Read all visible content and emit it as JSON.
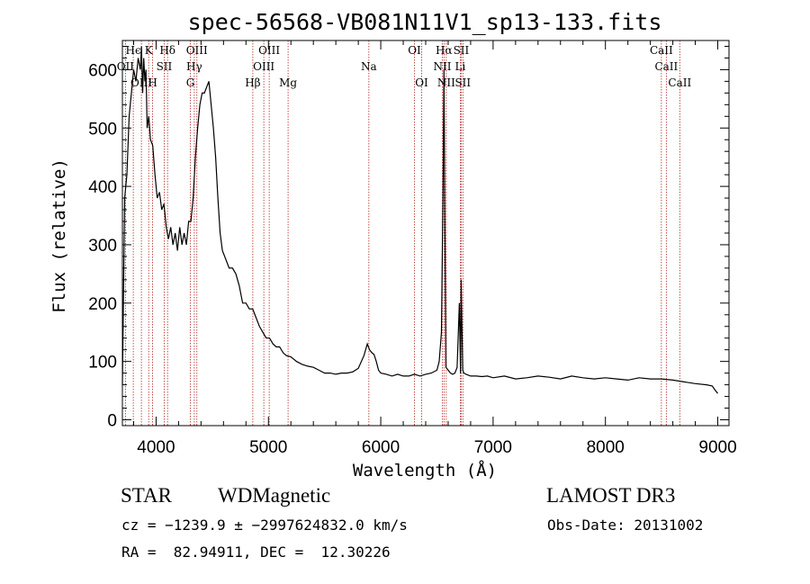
{
  "chart_data": {
    "type": "line",
    "title": "spec-56568-VB081N11V1_sp13-133.fits",
    "xlabel": "Wavelength (Å)",
    "ylabel": "Flux (relative)",
    "xlim": [
      3700,
      9100
    ],
    "ylim": [
      -10,
      650
    ],
    "xticks": [
      4000,
      5000,
      6000,
      7000,
      8000,
      9000
    ],
    "yticks": [
      0,
      100,
      200,
      300,
      400,
      500,
      600
    ],
    "colors": {
      "line": "#000000",
      "marker": "#b22222",
      "axes": "#000000"
    },
    "series": [
      {
        "name": "spectrum",
        "x": [
          3700,
          3720,
          3740,
          3760,
          3780,
          3800,
          3820,
          3840,
          3860,
          3870,
          3880,
          3890,
          3900,
          3910,
          3920,
          3935,
          3950,
          3970,
          3990,
          4010,
          4030,
          4050,
          4070,
          4090,
          4110,
          4130,
          4150,
          4170,
          4190,
          4210,
          4230,
          4250,
          4270,
          4290,
          4310,
          4330,
          4350,
          4370,
          4390,
          4410,
          4430,
          4450,
          4470,
          4490,
          4510,
          4530,
          4550,
          4570,
          4590,
          4610,
          4630,
          4650,
          4680,
          4710,
          4740,
          4770,
          4800,
          4830,
          4860,
          4890,
          4920,
          4950,
          4980,
          5010,
          5040,
          5070,
          5100,
          5130,
          5160,
          5200,
          5250,
          5300,
          5350,
          5400,
          5450,
          5500,
          5550,
          5600,
          5650,
          5700,
          5750,
          5800,
          5850,
          5880,
          5900,
          5920,
          5940,
          5960,
          5980,
          6000,
          6050,
          6100,
          6150,
          6200,
          6250,
          6300,
          6350,
          6400,
          6450,
          6500,
          6520,
          6540,
          6555,
          6563,
          6570,
          6580,
          6600,
          6620,
          6640,
          6660,
          6680,
          6700,
          6710,
          6716,
          6722,
          6730,
          6740,
          6760,
          6800,
          6850,
          6900,
          6950,
          7000,
          7100,
          7200,
          7300,
          7400,
          7500,
          7600,
          7700,
          7800,
          7900,
          8000,
          8100,
          8200,
          8300,
          8400,
          8500,
          8600,
          8700,
          8800,
          8900,
          8950,
          8980,
          9000
        ],
        "y": [
          60,
          380,
          420,
          520,
          560,
          600,
          580,
          620,
          600,
          640,
          560,
          620,
          580,
          600,
          500,
          520,
          480,
          470,
          420,
          380,
          390,
          360,
          370,
          330,
          310,
          330,
          300,
          320,
          290,
          330,
          300,
          320,
          300,
          340,
          340,
          380,
          450,
          500,
          540,
          560,
          560,
          570,
          580,
          540,
          500,
          450,
          380,
          320,
          290,
          280,
          270,
          260,
          260,
          250,
          230,
          200,
          200,
          190,
          190,
          175,
          160,
          150,
          140,
          140,
          130,
          125,
          125,
          115,
          110,
          108,
          100,
          95,
          92,
          90,
          85,
          80,
          80,
          78,
          80,
          80,
          82,
          88,
          110,
          130,
          120,
          115,
          112,
          100,
          85,
          80,
          78,
          75,
          78,
          75,
          75,
          78,
          75,
          78,
          80,
          85,
          100,
          150,
          400,
          600,
          370,
          90,
          85,
          80,
          78,
          80,
          90,
          200,
          80,
          240,
          165,
          85,
          80,
          78,
          75,
          75,
          74,
          75,
          72,
          75,
          70,
          72,
          75,
          73,
          70,
          75,
          72,
          70,
          72,
          70,
          68,
          72,
          70,
          70,
          68,
          65,
          62,
          60,
          58,
          50,
          45
        ]
      }
    ],
    "lines": [
      {
        "label": "Hϵ",
        "wave": 3797,
        "row": 0
      },
      {
        "label": "OII",
        "wave": 3727,
        "row": 1
      },
      {
        "label": "OIII",
        "wave": 3869,
        "row": 2
      },
      {
        "label": "K",
        "wave": 3934,
        "row": 0
      },
      {
        "label": "H",
        "wave": 3969,
        "row": 2
      },
      {
        "label": "Hδ",
        "wave": 4102,
        "row": 0
      },
      {
        "label": "SII",
        "wave": 4072,
        "row": 1
      },
      {
        "label": "OIII",
        "wave": 4363,
        "row": 0
      },
      {
        "label": "Hγ",
        "wave": 4340,
        "row": 1
      },
      {
        "label": "G",
        "wave": 4305,
        "row": 2
      },
      {
        "label": "Hβ",
        "wave": 4861,
        "row": 2
      },
      {
        "label": "OIII",
        "wave": 5007,
        "row": 0
      },
      {
        "label": "OIII",
        "wave": 4959,
        "row": 1
      },
      {
        "label": "Mg",
        "wave": 5175,
        "row": 2
      },
      {
        "label": "Na",
        "wave": 5894,
        "row": 1
      },
      {
        "label": "OI",
        "wave": 6300,
        "row": 0
      },
      {
        "label": "OI",
        "wave": 6364,
        "row": 2
      },
      {
        "label": "Hα",
        "wave": 6563,
        "row": 0
      },
      {
        "label": "NII",
        "wave": 6548,
        "row": 1
      },
      {
        "label": "NII",
        "wave": 6583,
        "row": 2
      },
      {
        "label": "SII",
        "wave": 6716,
        "row": 0
      },
      {
        "label": "Li",
        "wave": 6708,
        "row": 1
      },
      {
        "label": "SII",
        "wave": 6731,
        "row": 2
      },
      {
        "label": "CaII",
        "wave": 8498,
        "row": 0
      },
      {
        "label": "CaII",
        "wave": 8542,
        "row": 1
      },
      {
        "label": "CaII",
        "wave": 8662,
        "row": 2
      }
    ]
  },
  "info": {
    "class": "STAR",
    "subclass": "WDMagnetic",
    "survey": "LAMOST DR3",
    "cz": "cz = −1239.9 ± −2997624832.0 km/s",
    "obs_date": "Obs-Date: 20131002",
    "radec": "RA =  82.94911, DEC =  12.30226"
  }
}
